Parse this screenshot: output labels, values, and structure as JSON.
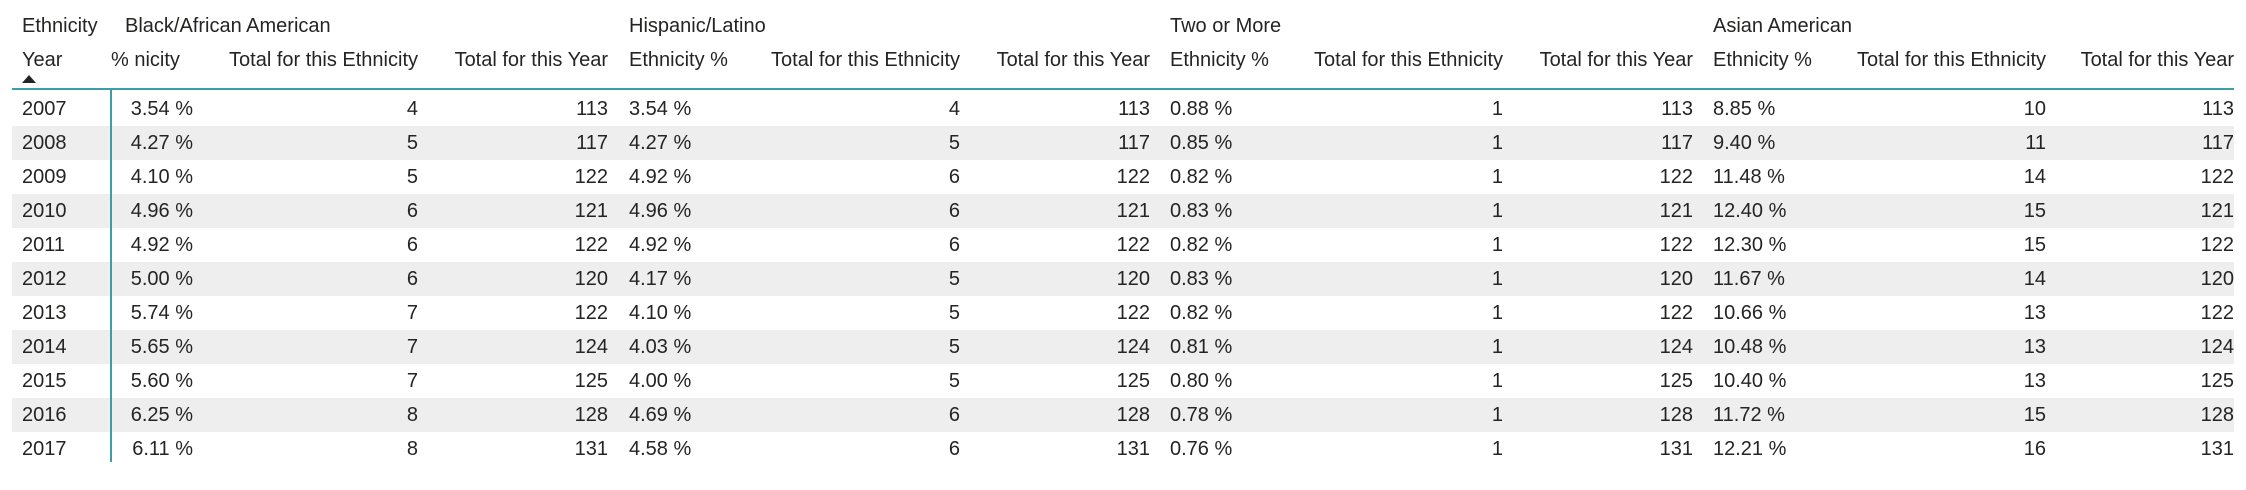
{
  "matrix": {
    "corner_header": {
      "row_field": "Ethnicity",
      "column_field": "Year"
    },
    "groups": [
      {
        "name": "Black/African American",
        "column_labels": [
          "nicity %",
          "Total for this Ethnicity",
          "Total for this Year"
        ]
      },
      {
        "name": "Hispanic/Latino",
        "column_labels": [
          "Ethnicity %",
          "Total for this Ethnicity",
          "Total for this Year"
        ]
      },
      {
        "name": "Two or More",
        "column_labels": [
          "Ethnicity %",
          "Total for this Ethnicity",
          "Total for this Year"
        ]
      },
      {
        "name": "Asian American",
        "column_labels": [
          "Ethnicity %",
          "Total for this Ethnicity",
          "Total for this Year"
        ]
      }
    ],
    "sort_indicator": "sort-ascending",
    "rows": [
      {
        "year": "2007",
        "values": [
          [
            "3.54 %",
            "4",
            "113"
          ],
          [
            "3.54 %",
            "4",
            "113"
          ],
          [
            "0.88 %",
            "1",
            "113"
          ],
          [
            "8.85 %",
            "10",
            "113"
          ]
        ]
      },
      {
        "year": "2008",
        "values": [
          [
            "4.27 %",
            "5",
            "117"
          ],
          [
            "4.27 %",
            "5",
            "117"
          ],
          [
            "0.85 %",
            "1",
            "117"
          ],
          [
            "9.40 %",
            "11",
            "117"
          ]
        ]
      },
      {
        "year": "2009",
        "values": [
          [
            "4.10 %",
            "5",
            "122"
          ],
          [
            "4.92 %",
            "6",
            "122"
          ],
          [
            "0.82 %",
            "1",
            "122"
          ],
          [
            "11.48 %",
            "14",
            "122"
          ]
        ]
      },
      {
        "year": "2010",
        "values": [
          [
            "4.96 %",
            "6",
            "121"
          ],
          [
            "4.96 %",
            "6",
            "121"
          ],
          [
            "0.83 %",
            "1",
            "121"
          ],
          [
            "12.40 %",
            "15",
            "121"
          ]
        ]
      },
      {
        "year": "2011",
        "values": [
          [
            "4.92 %",
            "6",
            "122"
          ],
          [
            "4.92 %",
            "6",
            "122"
          ],
          [
            "0.82 %",
            "1",
            "122"
          ],
          [
            "12.30 %",
            "15",
            "122"
          ]
        ]
      },
      {
        "year": "2012",
        "values": [
          [
            "5.00 %",
            "6",
            "120"
          ],
          [
            "4.17 %",
            "5",
            "120"
          ],
          [
            "0.83 %",
            "1",
            "120"
          ],
          [
            "11.67 %",
            "14",
            "120"
          ]
        ]
      },
      {
        "year": "2013",
        "values": [
          [
            "5.74 %",
            "7",
            "122"
          ],
          [
            "4.10 %",
            "5",
            "122"
          ],
          [
            "0.82 %",
            "1",
            "122"
          ],
          [
            "10.66 %",
            "13",
            "122"
          ]
        ]
      },
      {
        "year": "2014",
        "values": [
          [
            "5.65 %",
            "7",
            "124"
          ],
          [
            "4.03 %",
            "5",
            "124"
          ],
          [
            "0.81 %",
            "1",
            "124"
          ],
          [
            "10.48 %",
            "13",
            "124"
          ]
        ]
      },
      {
        "year": "2015",
        "values": [
          [
            "5.60 %",
            "7",
            "125"
          ],
          [
            "4.00 %",
            "5",
            "125"
          ],
          [
            "0.80 %",
            "1",
            "125"
          ],
          [
            "10.40 %",
            "13",
            "125"
          ]
        ]
      },
      {
        "year": "2016",
        "values": [
          [
            "6.25 %",
            "8",
            "128"
          ],
          [
            "4.69 %",
            "6",
            "128"
          ],
          [
            "0.78 %",
            "1",
            "128"
          ],
          [
            "11.72 %",
            "15",
            "128"
          ]
        ]
      },
      {
        "year": "2017",
        "values": [
          [
            "6.11 %",
            "8",
            "131"
          ],
          [
            "4.58 %",
            "6",
            "131"
          ],
          [
            "0.76 %",
            "1",
            "131"
          ],
          [
            "12.21 %",
            "16",
            "131"
          ]
        ]
      }
    ],
    "colors": {
      "accent_line": "#3d9ea4",
      "alt_row": "#eeeeee",
      "text": "#252423"
    }
  }
}
